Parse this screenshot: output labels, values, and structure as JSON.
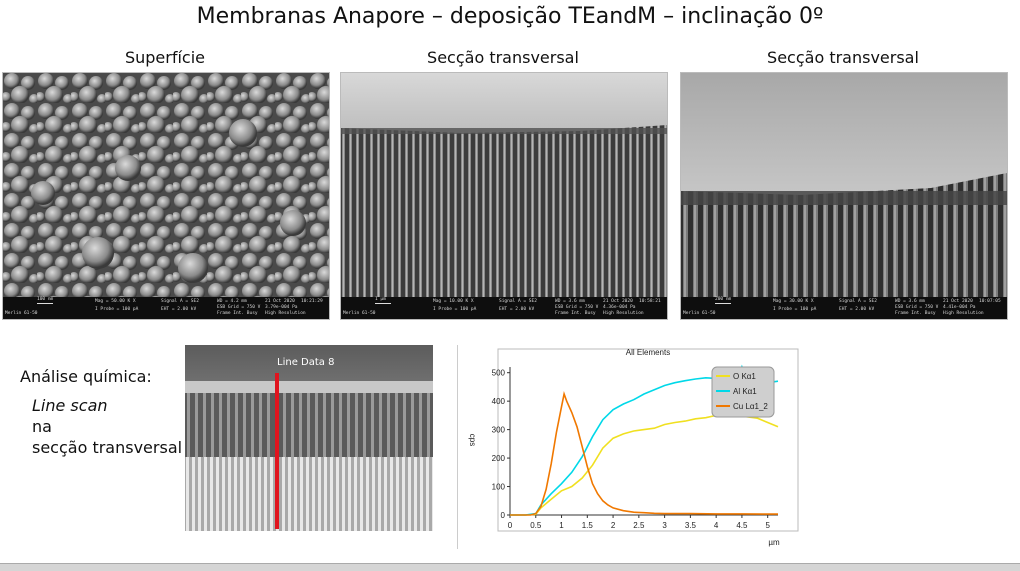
{
  "slide": {
    "title": "Membranas Anapore – deposição TEandM – inclinação 0º",
    "captions": [
      "Superfície",
      "Secção transversal",
      "Secção transversal"
    ],
    "left_text": {
      "heading": "Análise química:",
      "line1": "Line scan",
      "line2": "na",
      "line3": "secção transversal"
    },
    "linescan_label": "Line Data 8",
    "colors": {
      "line_marker": "#e0141e",
      "series_O": "#f0e020",
      "series_Al": "#00d8e8",
      "series_Cu": "#f07800"
    }
  },
  "sem_images": [
    {
      "scale": "100 nm",
      "mag": "Mag = 50.00 K X",
      "probe": "I Probe = 100 pA",
      "signal": "Signal A = SE2",
      "eht": "EHT = 2.00 kV",
      "wd": "WD = 4.2 mm",
      "esb": "ESB Grid = 750 V",
      "date": "21 Oct 2020",
      "time": "10:21:29",
      "press": "3.79e-004 Pa",
      "frame": "Frame Int. Busy",
      "res": "High Resolution",
      "instr": "Merlin 61-50"
    },
    {
      "scale": "1 µm",
      "mag": "Mag = 10.00 K X",
      "probe": "I Probe = 100 pA",
      "signal": "Signal A = SE2",
      "eht": "EHT = 2.00 kV",
      "wd": "WD = 3.6 mm",
      "esb": "ESB Grid = 750 V",
      "date": "21 Oct 2020",
      "time": "10:58:21",
      "press": "4.36e-004 Pa",
      "frame": "Frame Int. Busy",
      "res": "High Resolution",
      "instr": "Merlin 61-50"
    },
    {
      "scale": "200 nm",
      "mag": "Mag = 30.00 K X",
      "probe": "I Probe = 100 pA",
      "signal": "Signal A = SE2",
      "eht": "EHT = 2.00 kV",
      "wd": "WD = 3.6 mm",
      "esb": "ESB Grid = 750 V",
      "date": "21 Oct 2020",
      "time": "10:07:05",
      "press": "4.41e-004 Pa",
      "frame": "Frame Int. Busy",
      "res": "High Resolution",
      "instr": "Merlin 61-50"
    }
  ],
  "chart_data": {
    "type": "line",
    "title": "All Elements",
    "xlabel": "µm",
    "ylabel": "cps",
    "xlim": [
      0,
      5.2
    ],
    "ylim": [
      0,
      520
    ],
    "xticks": [
      "0",
      "0.5",
      "1",
      "1.5",
      "2",
      "2.5",
      "3",
      "3.5",
      "4",
      "4.5",
      "5"
    ],
    "yticks": [
      "0",
      "100",
      "200",
      "300",
      "400",
      "500"
    ],
    "grid": false,
    "legend_position": "top-right",
    "series": [
      {
        "name": "O Kα1",
        "color": "#f0e020",
        "x": [
          0,
          0.3,
          0.5,
          0.6,
          0.8,
          1.0,
          1.2,
          1.4,
          1.6,
          1.8,
          2.0,
          2.2,
          2.4,
          2.6,
          2.8,
          3.0,
          3.2,
          3.4,
          3.6,
          3.8,
          4.0,
          4.2,
          4.4,
          4.6,
          4.8,
          5.0,
          5.2
        ],
        "y": [
          0,
          0,
          2,
          25,
          55,
          85,
          100,
          130,
          175,
          235,
          270,
          285,
          295,
          300,
          305,
          318,
          325,
          330,
          338,
          342,
          350,
          355,
          350,
          345,
          340,
          325,
          310
        ]
      },
      {
        "name": "Al Kα1",
        "color": "#00d8e8",
        "x": [
          0,
          0.3,
          0.5,
          0.6,
          0.8,
          1.0,
          1.2,
          1.4,
          1.6,
          1.8,
          2.0,
          2.2,
          2.4,
          2.6,
          2.8,
          3.0,
          3.2,
          3.4,
          3.6,
          3.8,
          4.0,
          4.2,
          4.4,
          4.5,
          4.6,
          4.8,
          5.0,
          5.2
        ],
        "y": [
          0,
          0,
          5,
          35,
          75,
          110,
          150,
          205,
          275,
          335,
          370,
          390,
          405,
          425,
          440,
          455,
          465,
          472,
          478,
          482,
          480,
          478,
          470,
          520,
          470,
          470,
          465,
          470
        ]
      },
      {
        "name": "Cu Lα1_2",
        "color": "#f07800",
        "x": [
          0,
          0.4,
          0.5,
          0.6,
          0.7,
          0.8,
          0.9,
          1.0,
          1.05,
          1.1,
          1.2,
          1.3,
          1.4,
          1.5,
          1.6,
          1.7,
          1.8,
          1.9,
          2.0,
          2.2,
          2.4,
          2.6,
          2.8,
          3.0,
          3.5,
          4.0,
          4.5,
          5.0,
          5.2
        ],
        "y": [
          0,
          0,
          5,
          30,
          90,
          180,
          290,
          380,
          425,
          400,
          360,
          310,
          240,
          170,
          110,
          75,
          50,
          35,
          25,
          15,
          10,
          8,
          6,
          5,
          5,
          4,
          4,
          3,
          3
        ]
      }
    ]
  }
}
